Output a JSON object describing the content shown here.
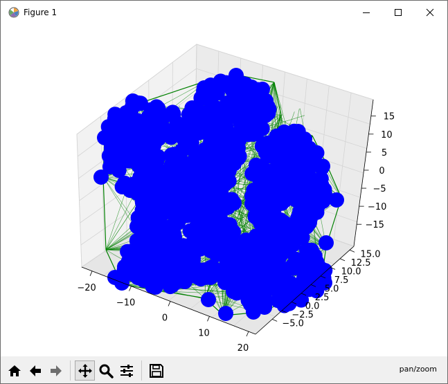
{
  "window": {
    "title": "Figure 1"
  },
  "title_bar": {
    "minimize_icon": "minimize-icon",
    "maximize_icon": "maximize-icon",
    "close_icon": "close-icon"
  },
  "toolbar": {
    "buttons": [
      {
        "id": "home",
        "icon": "home-icon"
      },
      {
        "id": "back",
        "icon": "arrow-left-icon"
      },
      {
        "id": "forward",
        "icon": "arrow-right-icon"
      },
      {
        "id": "pan",
        "icon": "move-icon",
        "active": true
      },
      {
        "id": "zoom",
        "icon": "magnifier-icon"
      },
      {
        "id": "configure",
        "icon": "sliders-icon"
      },
      {
        "id": "save",
        "icon": "floppy-disk-icon"
      }
    ],
    "status": "pan/zoom"
  },
  "colors": {
    "points": "#0000ff",
    "edges": "#008000",
    "pane": "#f2f2f2",
    "grid": "#d9d9d9"
  },
  "chart_data": {
    "type": "scatter3d",
    "title": "",
    "xlabel": "",
    "ylabel": "",
    "zlabel": "",
    "x_ticks": [
      "−20",
      "−10",
      "0",
      "10",
      "20"
    ],
    "y_ticks": [
      "−5.0",
      "−2.5",
      "0.0",
      "2.5",
      "5.0",
      "7.5",
      "10.0",
      "12.5",
      "15.0"
    ],
    "z_ticks": [
      "−15",
      "−10",
      "−5",
      "0",
      "5",
      "10",
      "15"
    ],
    "xlim": [
      -25,
      25
    ],
    "ylim": [
      -5,
      15
    ],
    "zlim": [
      -17,
      17
    ],
    "grid": true,
    "series": [
      {
        "kind": "edges",
        "color": "#008000"
      },
      {
        "kind": "points",
        "color": "#0000ff"
      }
    ]
  }
}
